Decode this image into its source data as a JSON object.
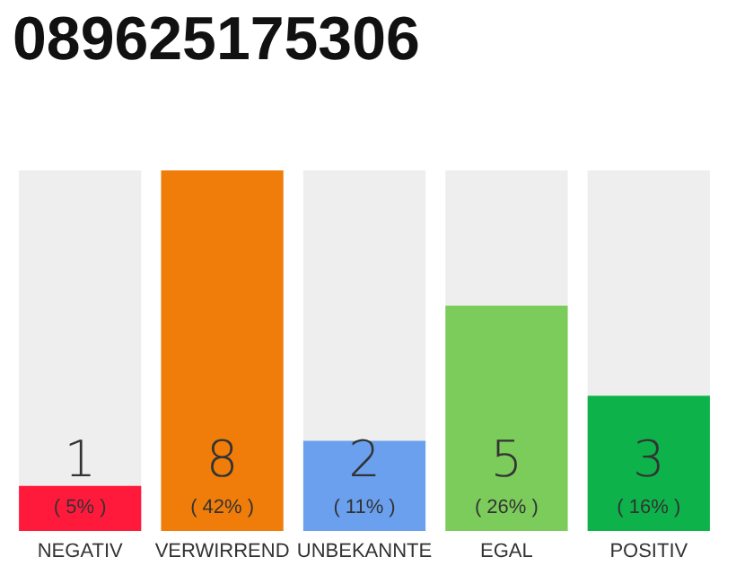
{
  "chart_data": {
    "type": "bar",
    "title": "089625175306",
    "categories": [
      "NEGATIV",
      "VERWIRREND",
      "UNBEKANNTE",
      "EGAL",
      "POSITIV"
    ],
    "values": [
      1,
      8,
      2,
      5,
      3
    ],
    "colors": [
      "#ff1a3c",
      "#f07d0a",
      "#6aa0ee",
      "#7ccc5c",
      "#0db34a"
    ],
    "value_labels": [
      "1\n( 5% )",
      "8\n( 42% )",
      "2\n( 11% )",
      "5\n( 26% )",
      "3\n( 16% )"
    ]
  }
}
